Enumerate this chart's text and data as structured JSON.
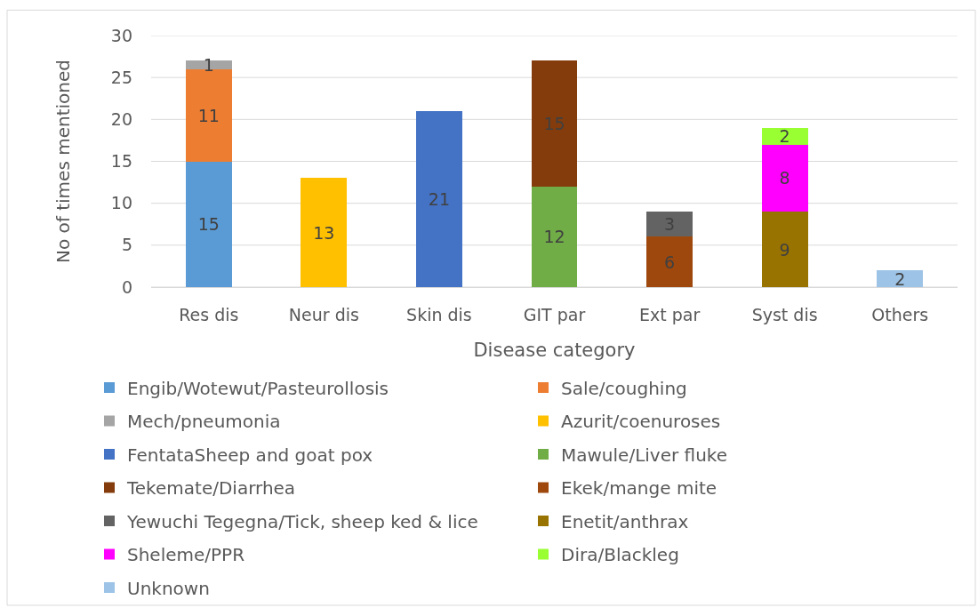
{
  "chart_data": {
    "type": "bar",
    "stacked": true,
    "xlabel": "Disease category",
    "ylabel": "No of times mentioned",
    "categories": [
      "Res dis",
      "Neur dis",
      "Skin dis",
      "GIT par",
      "Ext par",
      "Syst dis",
      "Others"
    ],
    "ylim": [
      0,
      30
    ],
    "yticks": [
      0,
      5,
      10,
      15,
      20,
      25,
      30
    ],
    "grid": "y",
    "legend": "bottom",
    "data_labels": true,
    "series": [
      {
        "name": "Engib/Wotewut/Pasteurollosis",
        "color": "#5b9bd5",
        "values": [
          15,
          null,
          null,
          null,
          null,
          null,
          null
        ]
      },
      {
        "name": "Sale/coughing",
        "color": "#ed7d31",
        "values": [
          11,
          null,
          null,
          null,
          null,
          null,
          null
        ]
      },
      {
        "name": "Mech/pneumonia",
        "color": "#a5a5a5",
        "values": [
          1,
          null,
          null,
          null,
          null,
          null,
          null
        ]
      },
      {
        "name": "Azurit/coenuroses",
        "color": "#ffc000",
        "values": [
          null,
          13,
          null,
          null,
          null,
          null,
          null
        ]
      },
      {
        "name": "FentataSheep and goat pox",
        "color": "#4472c4",
        "values": [
          null,
          null,
          21,
          null,
          null,
          null,
          null
        ]
      },
      {
        "name": "Mawule/Liver fluke",
        "color": "#70ad47",
        "values": [
          null,
          null,
          null,
          12,
          null,
          null,
          null
        ]
      },
      {
        "name": "Tekemate/Diarrhea",
        "color": "#843c0c",
        "values": [
          null,
          null,
          null,
          15,
          null,
          null,
          null
        ]
      },
      {
        "name": "Ekek/mange mite",
        "color": "#9e480e",
        "values": [
          null,
          null,
          null,
          null,
          6,
          null,
          null
        ]
      },
      {
        "name": "Yewuchi Tegegna/Tick, sheep ked & lice",
        "color": "#636363",
        "values": [
          null,
          null,
          null,
          null,
          3,
          null,
          null
        ]
      },
      {
        "name": "Enetit/anthrax",
        "color": "#997300",
        "values": [
          null,
          null,
          null,
          null,
          null,
          9,
          null
        ]
      },
      {
        "name": "Sheleme/PPR",
        "color": "#ff00ff",
        "values": [
          null,
          null,
          null,
          null,
          null,
          8,
          null
        ]
      },
      {
        "name": "Dira/Blackleg",
        "color": "#99ff33",
        "values": [
          null,
          null,
          null,
          null,
          null,
          2,
          null
        ]
      },
      {
        "name": "Unknown",
        "color": "#9dc3e6",
        "values": [
          null,
          null,
          null,
          null,
          null,
          null,
          2
        ]
      }
    ]
  }
}
